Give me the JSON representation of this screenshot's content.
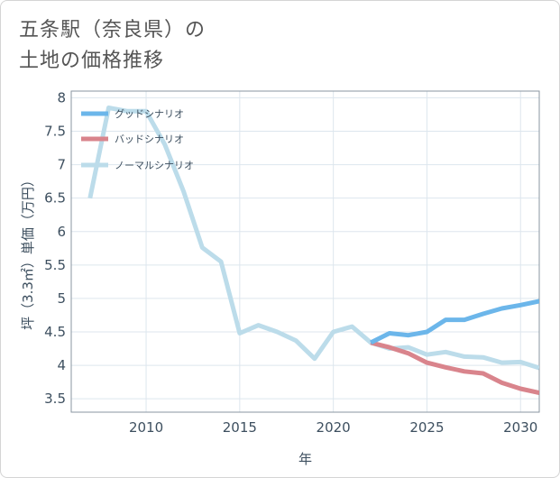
{
  "title_lines": [
    "五条駅（奈良県）の",
    "土地の価格推移"
  ],
  "chart_data": {
    "type": "line",
    "xlabel": "年",
    "ylabel": "坪（3.3㎡）単価（万円）",
    "xlim": [
      2006,
      2031
    ],
    "ylim": [
      3.3,
      8.1
    ],
    "x_ticks": [
      2010,
      2015,
      2020,
      2025,
      2030
    ],
    "y_ticks": [
      3.5,
      4,
      4.5,
      5,
      5.5,
      6,
      6.5,
      7,
      7.5,
      8
    ],
    "legend_position": "top-left",
    "series": [
      {
        "name": "グッドシナリオ",
        "color": "#6cb6ea",
        "x": [
          2022,
          2023,
          2024,
          2025,
          2026,
          2027,
          2028,
          2029,
          2030,
          2031
        ],
        "values": [
          4.34,
          4.48,
          4.45,
          4.5,
          4.68,
          4.68,
          4.77,
          4.85,
          4.9,
          4.96
        ]
      },
      {
        "name": "バッドシナリオ",
        "color": "#d9848c",
        "x": [
          2022,
          2023,
          2024,
          2025,
          2026,
          2027,
          2028,
          2029,
          2030,
          2031
        ],
        "values": [
          4.34,
          4.27,
          4.18,
          4.04,
          3.97,
          3.91,
          3.88,
          3.74,
          3.65,
          3.59
        ]
      },
      {
        "name": "ノーマルシナリオ",
        "color": "#bcdcea",
        "x": [
          2007,
          2008,
          2009,
          2010,
          2011,
          2012,
          2013,
          2014,
          2015,
          2016,
          2017,
          2018,
          2019,
          2020,
          2021,
          2022,
          2023,
          2024,
          2025,
          2026,
          2027,
          2028,
          2029,
          2030,
          2031
        ],
        "values": [
          6.5,
          7.85,
          7.8,
          7.8,
          7.3,
          6.6,
          5.76,
          5.55,
          4.48,
          4.6,
          4.5,
          4.37,
          4.1,
          4.5,
          4.58,
          4.34,
          4.25,
          4.27,
          4.16,
          4.2,
          4.13,
          4.12,
          4.04,
          4.05,
          3.96
        ]
      }
    ]
  }
}
